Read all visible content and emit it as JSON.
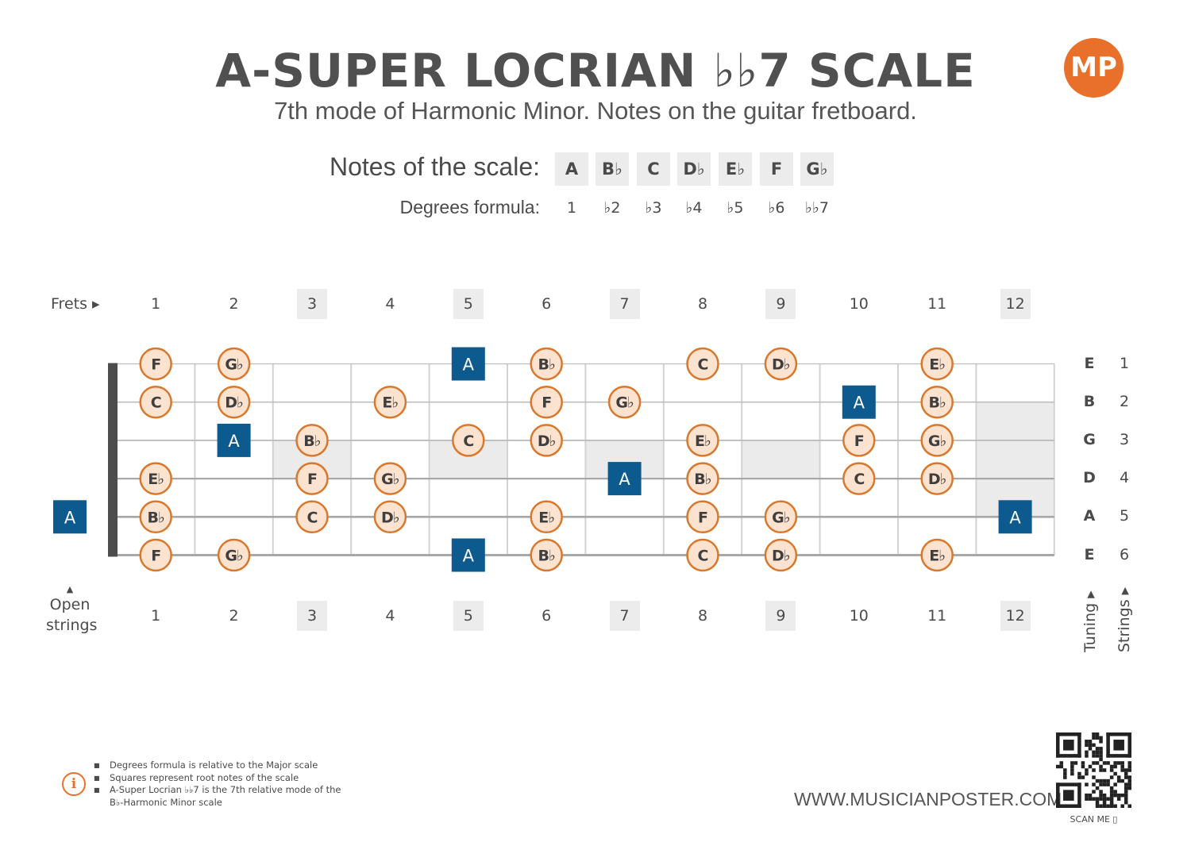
{
  "title": "A-SUPER LOCRIAN ♭♭7 SCALE",
  "subtitle": "7th mode of Harmonic Minor. Notes on the guitar fretboard.",
  "logo_text": "MP",
  "scale": {
    "notes_label": "Notes of the scale:",
    "degrees_label": "Degrees formula:",
    "notes": [
      "A",
      "B♭",
      "C",
      "D♭",
      "E♭",
      "F",
      "G♭"
    ],
    "degrees": [
      "1",
      "♭2",
      "♭3",
      "♭4",
      "♭5",
      "♭6",
      "♭♭7"
    ]
  },
  "frets_label": "Frets ▸",
  "open_strings_label": [
    "▲",
    "Open",
    "strings"
  ],
  "fret_numbers": [
    "1",
    "2",
    "3",
    "4",
    "5",
    "6",
    "7",
    "8",
    "9",
    "10",
    "11",
    "12"
  ],
  "marked_frets": [
    3,
    5,
    7,
    9,
    12
  ],
  "tuning": [
    "E",
    "B",
    "G",
    "D",
    "A",
    "E"
  ],
  "string_numbers": [
    "1",
    "2",
    "3",
    "4",
    "5",
    "6"
  ],
  "tuning_label": "Tuning ▸",
  "strings_label": "Strings ▸",
  "fretboard": {
    "root_note": "A",
    "colors": {
      "root": "#0d5a8e",
      "note_fill": "#fbe3d0",
      "note_border": "#d9782d",
      "inlay": "#ebebeb"
    },
    "positions": [
      {
        "string": 1,
        "fret": 1,
        "note": "F"
      },
      {
        "string": 1,
        "fret": 2,
        "note": "G♭"
      },
      {
        "string": 1,
        "fret": 5,
        "note": "A"
      },
      {
        "string": 1,
        "fret": 6,
        "note": "B♭"
      },
      {
        "string": 1,
        "fret": 8,
        "note": "C"
      },
      {
        "string": 1,
        "fret": 9,
        "note": "D♭"
      },
      {
        "string": 1,
        "fret": 11,
        "note": "E♭"
      },
      {
        "string": 2,
        "fret": 1,
        "note": "C"
      },
      {
        "string": 2,
        "fret": 2,
        "note": "D♭"
      },
      {
        "string": 2,
        "fret": 4,
        "note": "E♭"
      },
      {
        "string": 2,
        "fret": 6,
        "note": "F"
      },
      {
        "string": 2,
        "fret": 7,
        "note": "G♭"
      },
      {
        "string": 2,
        "fret": 10,
        "note": "A"
      },
      {
        "string": 2,
        "fret": 11,
        "note": "B♭"
      },
      {
        "string": 3,
        "fret": 2,
        "note": "A"
      },
      {
        "string": 3,
        "fret": 3,
        "note": "B♭"
      },
      {
        "string": 3,
        "fret": 5,
        "note": "C"
      },
      {
        "string": 3,
        "fret": 6,
        "note": "D♭"
      },
      {
        "string": 3,
        "fret": 8,
        "note": "E♭"
      },
      {
        "string": 3,
        "fret": 10,
        "note": "F"
      },
      {
        "string": 3,
        "fret": 11,
        "note": "G♭"
      },
      {
        "string": 4,
        "fret": 1,
        "note": "E♭"
      },
      {
        "string": 4,
        "fret": 3,
        "note": "F"
      },
      {
        "string": 4,
        "fret": 4,
        "note": "G♭"
      },
      {
        "string": 4,
        "fret": 7,
        "note": "A"
      },
      {
        "string": 4,
        "fret": 8,
        "note": "B♭"
      },
      {
        "string": 4,
        "fret": 10,
        "note": "C"
      },
      {
        "string": 4,
        "fret": 11,
        "note": "D♭"
      },
      {
        "string": 5,
        "fret": 0,
        "note": "A"
      },
      {
        "string": 5,
        "fret": 1,
        "note": "B♭"
      },
      {
        "string": 5,
        "fret": 3,
        "note": "C"
      },
      {
        "string": 5,
        "fret": 4,
        "note": "D♭"
      },
      {
        "string": 5,
        "fret": 6,
        "note": "E♭"
      },
      {
        "string": 5,
        "fret": 8,
        "note": "F"
      },
      {
        "string": 5,
        "fret": 9,
        "note": "G♭"
      },
      {
        "string": 5,
        "fret": 12,
        "note": "A"
      },
      {
        "string": 6,
        "fret": 1,
        "note": "F"
      },
      {
        "string": 6,
        "fret": 2,
        "note": "G♭"
      },
      {
        "string": 6,
        "fret": 5,
        "note": "A"
      },
      {
        "string": 6,
        "fret": 6,
        "note": "B♭"
      },
      {
        "string": 6,
        "fret": 8,
        "note": "C"
      },
      {
        "string": 6,
        "fret": 9,
        "note": "D♭"
      },
      {
        "string": 6,
        "fret": 11,
        "note": "E♭"
      }
    ]
  },
  "footnotes": [
    "Degrees formula is relative to the Major scale",
    "Squares represent root notes of the scale",
    "A-Super Locrian ♭♭7 is the 7th relative mode of the",
    "B♭-Harmonic Minor scale"
  ],
  "info_icon": "i",
  "website": "WWW.MUSICIANPOSTER.COM",
  "scan_label": "SCAN ME ▯"
}
